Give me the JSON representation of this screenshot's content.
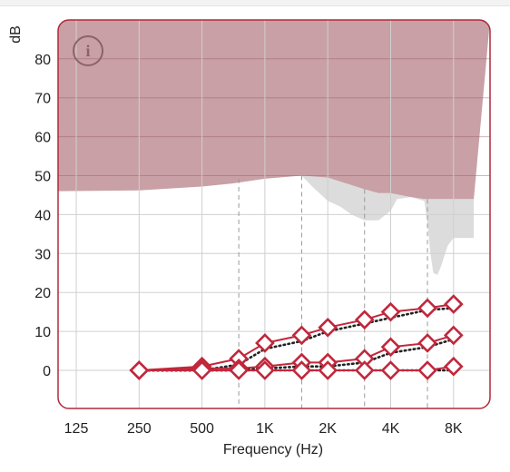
{
  "chart_data": {
    "type": "line",
    "ylabel": "dB",
    "xlabel": "Frequency (Hz)",
    "x_ticks": [
      {
        "hz": 125,
        "label": "125"
      },
      {
        "hz": 250,
        "label": "250"
      },
      {
        "hz": 500,
        "label": "500"
      },
      {
        "hz": 1000,
        "label": "1K"
      },
      {
        "hz": 2000,
        "label": "2K"
      },
      {
        "hz": 4000,
        "label": "4K"
      },
      {
        "hz": 8000,
        "label": "8K"
      }
    ],
    "x_minor_ticks_hz": [
      750,
      1500,
      3000,
      6000
    ],
    "x_scale": "log",
    "y_ticks": [
      0,
      10,
      20,
      30,
      40,
      50,
      60,
      70,
      80
    ],
    "ylim": [
      -10,
      90
    ],
    "xlim_hz": [
      100,
      10000
    ],
    "grid": true,
    "colors": {
      "region": "#c8a0a5",
      "gray_region": "#dcdcdc",
      "series": "#c0283c",
      "target": "#222222",
      "frame": "#b0283c"
    },
    "regions": {
      "upper_boundary_db": [
        [
          100,
          46
        ],
        [
          250,
          46.2
        ],
        [
          500,
          47.2
        ],
        [
          700,
          48
        ],
        [
          1000,
          49.2
        ],
        [
          1500,
          50
        ],
        [
          2000,
          49.5
        ],
        [
          3000,
          46.5
        ],
        [
          3500,
          45.5
        ],
        [
          4000,
          45.5
        ],
        [
          5000,
          44.5
        ],
        [
          5800,
          44
        ],
        [
          7000,
          44
        ],
        [
          10000,
          44
        ]
      ],
      "gray_lower_boundary_db": [
        [
          1500,
          50
        ],
        [
          1700,
          47
        ],
        [
          2000,
          43.5
        ],
        [
          2300,
          42
        ],
        [
          2600,
          40
        ],
        [
          3000,
          38.5
        ],
        [
          3500,
          38.5
        ],
        [
          4000,
          41
        ],
        [
          4300,
          44
        ],
        [
          5000,
          44.5
        ],
        [
          5800,
          43.5
        ],
        [
          6000,
          38
        ],
        [
          6200,
          30
        ],
        [
          6400,
          25
        ],
        [
          6700,
          24.5
        ],
        [
          7000,
          27
        ],
        [
          7500,
          32
        ],
        [
          8000,
          34
        ],
        [
          10000,
          34
        ]
      ]
    },
    "series": [
      {
        "kind": "measured",
        "points": [
          [
            250,
            0
          ],
          [
            500,
            1
          ],
          [
            750,
            3
          ],
          [
            1000,
            7
          ],
          [
            1500,
            9
          ],
          [
            2000,
            11
          ],
          [
            3000,
            13
          ],
          [
            4000,
            15
          ],
          [
            6000,
            16
          ],
          [
            8000,
            17
          ]
        ]
      },
      {
        "kind": "measured",
        "points": [
          [
            250,
            0
          ],
          [
            500,
            0.5
          ],
          [
            750,
            0.5
          ],
          [
            1000,
            1
          ],
          [
            1500,
            2
          ],
          [
            2000,
            2
          ],
          [
            3000,
            3
          ],
          [
            4000,
            6
          ],
          [
            6000,
            7
          ],
          [
            8000,
            9
          ]
        ]
      },
      {
        "kind": "measured",
        "points": [
          [
            250,
            0
          ],
          [
            500,
            0
          ],
          [
            750,
            0
          ],
          [
            1000,
            0
          ],
          [
            1500,
            0
          ],
          [
            2000,
            0
          ],
          [
            3000,
            0
          ],
          [
            4000,
            0
          ],
          [
            6000,
            0
          ],
          [
            8000,
            1
          ]
        ]
      }
    ],
    "targets": [
      {
        "points": [
          [
            250,
            0
          ],
          [
            500,
            0
          ],
          [
            750,
            1.5
          ],
          [
            1000,
            5.5
          ],
          [
            1500,
            7.5
          ],
          [
            2000,
            10
          ],
          [
            3000,
            12
          ],
          [
            4000,
            13.5
          ],
          [
            6000,
            15.5
          ],
          [
            8000,
            16
          ]
        ]
      },
      {
        "points": [
          [
            250,
            0
          ],
          [
            500,
            0
          ],
          [
            750,
            0
          ],
          [
            1000,
            0.5
          ],
          [
            1500,
            1
          ],
          [
            2000,
            1
          ],
          [
            3000,
            2
          ],
          [
            4000,
            4.5
          ],
          [
            6000,
            6
          ],
          [
            8000,
            8
          ]
        ]
      },
      {
        "points": [
          [
            250,
            0
          ],
          [
            500,
            0
          ],
          [
            750,
            0
          ],
          [
            1000,
            0
          ],
          [
            1500,
            0
          ],
          [
            2000,
            0
          ],
          [
            3000,
            0
          ],
          [
            4000,
            0
          ],
          [
            6000,
            0
          ],
          [
            8000,
            0
          ]
        ]
      }
    ]
  },
  "info_icon": {
    "name": "info-icon",
    "glyph": "i"
  }
}
